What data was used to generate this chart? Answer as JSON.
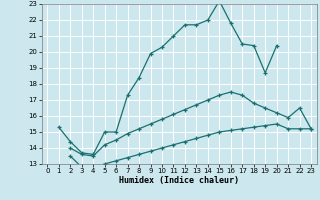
{
  "title": "",
  "xlabel": "Humidex (Indice chaleur)",
  "bg_color": "#cce8ee",
  "grid_color": "#ffffff",
  "line_color": "#1a7070",
  "xlim": [
    -0.5,
    23.5
  ],
  "ylim": [
    13,
    23
  ],
  "xticks": [
    0,
    1,
    2,
    3,
    4,
    5,
    6,
    7,
    8,
    9,
    10,
    11,
    12,
    13,
    14,
    15,
    16,
    17,
    18,
    19,
    20,
    21,
    22,
    23
  ],
  "yticks": [
    13,
    14,
    15,
    16,
    17,
    18,
    19,
    20,
    21,
    22,
    23
  ],
  "line1_x": [
    1,
    2,
    3,
    4,
    5,
    6,
    7,
    8,
    9,
    10,
    11,
    12,
    13,
    14,
    15,
    16,
    17,
    18,
    19,
    20
  ],
  "line1_y": [
    15.3,
    14.4,
    13.7,
    13.6,
    15.0,
    15.0,
    17.3,
    18.4,
    19.9,
    20.3,
    21.0,
    21.7,
    21.7,
    22.0,
    23.2,
    21.8,
    20.5,
    20.4,
    18.7,
    20.4
  ],
  "line2_x": [
    2,
    3,
    4,
    5,
    6,
    7,
    8,
    9,
    10,
    11,
    12,
    13,
    14,
    15,
    16,
    17,
    18,
    19,
    20,
    21,
    22,
    23
  ],
  "line2_y": [
    14.0,
    13.6,
    13.5,
    14.2,
    14.5,
    14.9,
    15.2,
    15.5,
    15.8,
    16.1,
    16.4,
    16.7,
    17.0,
    17.3,
    17.5,
    17.3,
    16.8,
    16.5,
    16.2,
    15.9,
    16.5,
    15.2
  ],
  "line3_x": [
    2,
    3,
    4,
    5,
    6,
    7,
    8,
    9,
    10,
    11,
    12,
    13,
    14,
    15,
    16,
    17,
    18,
    19,
    20,
    21,
    22,
    23
  ],
  "line3_y": [
    13.5,
    12.8,
    12.8,
    13.0,
    13.2,
    13.4,
    13.6,
    13.8,
    14.0,
    14.2,
    14.4,
    14.6,
    14.8,
    15.0,
    15.1,
    15.2,
    15.3,
    15.4,
    15.5,
    15.2,
    15.2,
    15.2
  ]
}
